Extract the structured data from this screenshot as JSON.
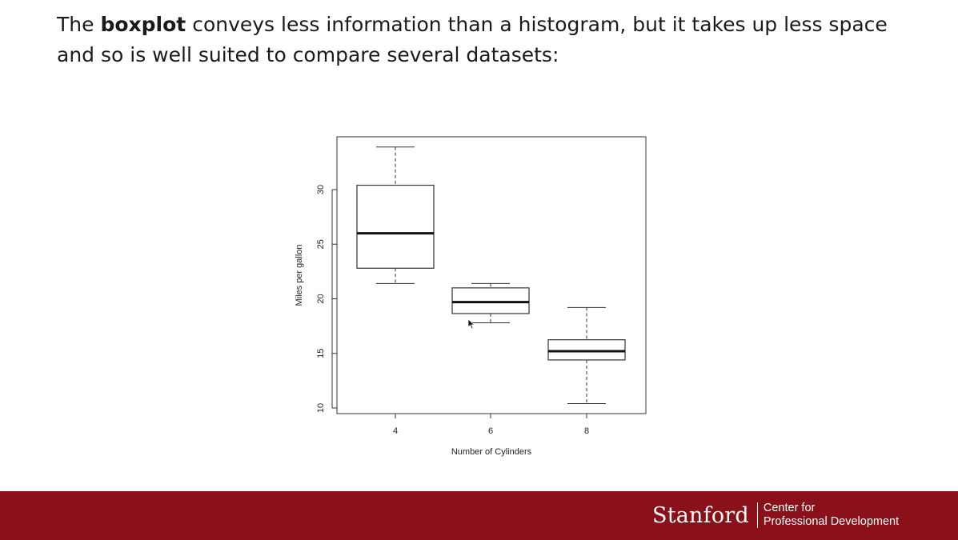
{
  "slide": {
    "text_before": "The ",
    "text_bold": "boxplot",
    "text_after": " conveys less information than a histogram, but it takes up less space and so is well suited to compare several datasets:"
  },
  "chart_data": {
    "type": "boxplot",
    "xlabel": "Number of Cylinders",
    "ylabel": "Miles per gallon",
    "categories": [
      "4",
      "6",
      "8"
    ],
    "y_ticks": [
      10,
      15,
      20,
      25,
      30
    ],
    "ylim": [
      9.5,
      34.8
    ],
    "grid": false,
    "legend": "none",
    "boxes": [
      {
        "category": "4",
        "min": 21.4,
        "q1": 22.8,
        "median": 26.0,
        "q3": 30.4,
        "max": 33.9
      },
      {
        "category": "6",
        "min": 17.8,
        "q1": 18.65,
        "median": 19.7,
        "q3": 21.0,
        "max": 21.4
      },
      {
        "category": "8",
        "min": 10.4,
        "q1": 14.4,
        "median": 15.2,
        "q3": 16.25,
        "max": 19.2
      }
    ]
  },
  "footer": {
    "brand": "Stanford",
    "unit_line1": "Center for",
    "unit_line2": "Professional Development",
    "background": "#8a1019"
  },
  "icons": {
    "cursor": "mouse-pointer-icon"
  }
}
